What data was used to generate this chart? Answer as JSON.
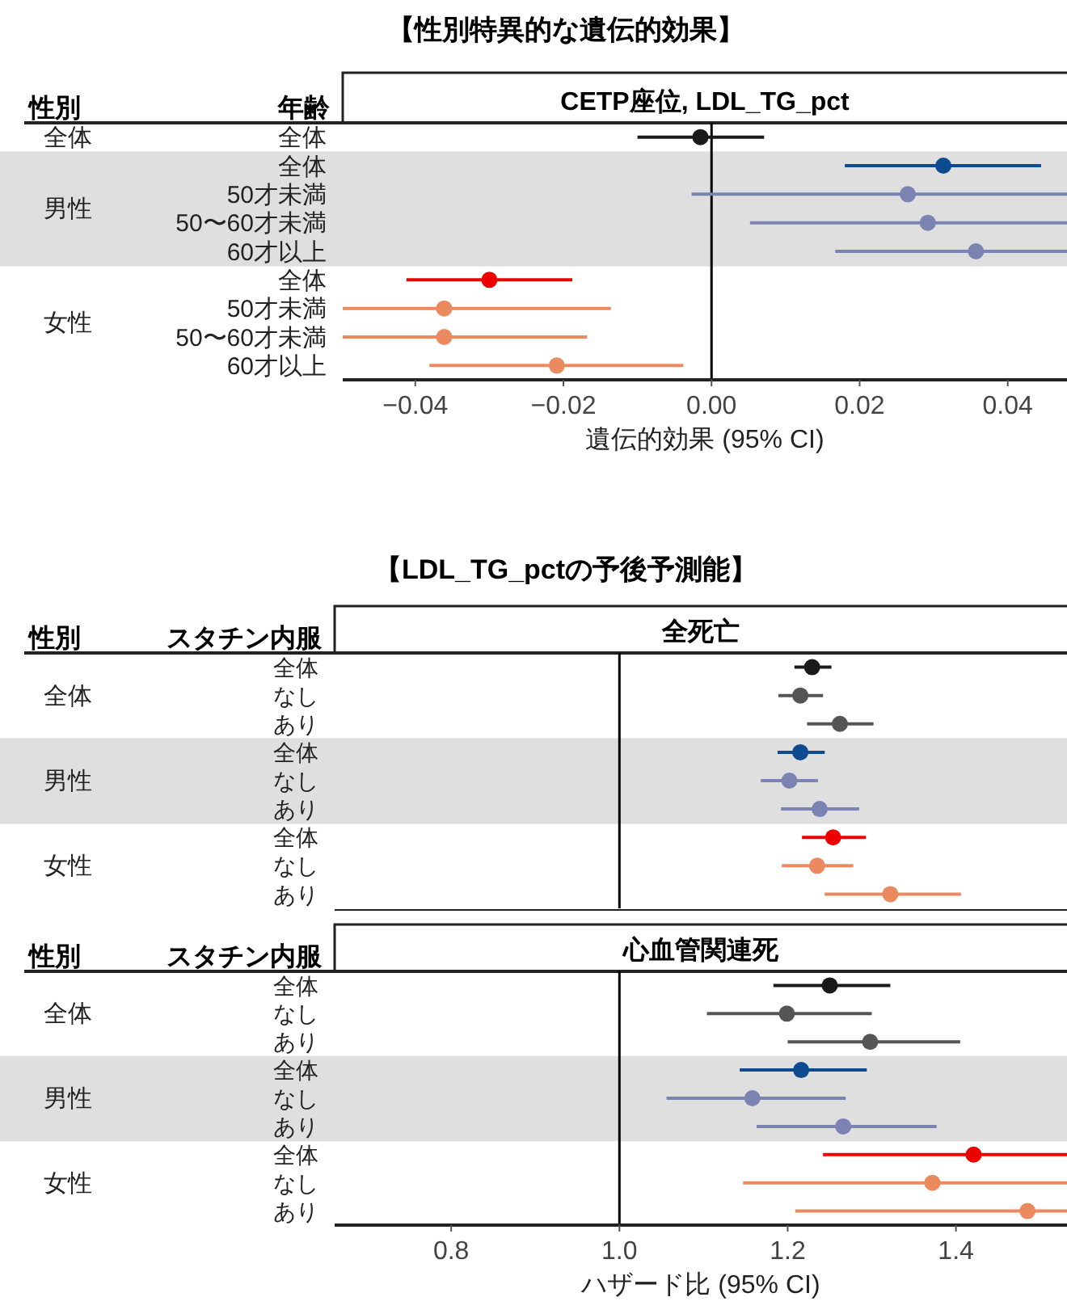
{
  "chart_data": [
    {
      "type": "scatter",
      "orientation": "horizontal",
      "title": "【性別特異的な遺伝的効果】",
      "subtitle": "CETP座位, LDL_TG_pct",
      "xlabel": "遺伝的効果 (95% CI)",
      "marker": "circle",
      "annotations": [
        "性別",
        "年齢",
        "全体",
        "男性",
        "女性"
      ],
      "categories": [
        "全体",
        "全体",
        "50才未満",
        "50〜60才未満",
        "60才以上",
        "全体",
        "50才未満",
        "50〜60才未満",
        "60才以上"
      ],
      "ref_lines": [
        {
          "axis": "x",
          "value": 0,
          "color": "#000000"
        }
      ],
      "xlim": [
        -0.0498,
        0.048
      ],
      "xticks": [
        {
          "value": -0.04,
          "label": "−0.04"
        },
        {
          "value": -0.02,
          "label": "−0.02"
        },
        {
          "value": 0,
          "label": "0.00"
        },
        {
          "value": 0.02,
          "label": "0.02"
        },
        {
          "value": 0.04,
          "label": "0.04"
        }
      ],
      "series": [
        {
          "colors": [
            "#1a1a1a",
            null,
            null,
            null,
            null,
            null,
            null,
            null,
            null
          ],
          "values": [
            -0.0015,
            null,
            null,
            null,
            null,
            null,
            null,
            null,
            null
          ],
          "errors": [
            [
              -0.01,
              0.0071
            ],
            null,
            null,
            null,
            null,
            null,
            null,
            null,
            null
          ]
        },
        {
          "colors": [
            null,
            "#0d4a8f",
            "#7b83b3",
            "#7b83b3",
            "#7b83b3",
            null,
            null,
            null,
            null
          ],
          "values": [
            null,
            0.0313,
            0.0265,
            0.0292,
            0.0357,
            null,
            null,
            null,
            null
          ],
          "errors": [
            null,
            [
              0.018,
              0.0445
            ],
            [
              -0.0027,
              0.048
            ],
            [
              0.0052,
              0.048
            ],
            [
              0.0167,
              0.048
            ],
            null,
            null,
            null,
            null
          ]
        },
        {
          "colors": [
            null,
            null,
            null,
            null,
            null,
            "#ee0000",
            "#ec8a5f",
            "#ec8a5f",
            "#ec8a5f"
          ],
          "values": [
            null,
            null,
            null,
            null,
            null,
            -0.03,
            -0.0361,
            -0.0361,
            -0.0209
          ],
          "errors": [
            null,
            null,
            null,
            null,
            null,
            [
              -0.0412,
              -0.0188
            ],
            [
              -0.0498,
              -0.0136
            ],
            [
              -0.0498,
              -0.0168
            ],
            [
              -0.0381,
              -0.0038
            ]
          ]
        }
      ]
    },
    {
      "type": "scatter",
      "orientation": "horizontal",
      "title": "【LDL_TG_pctの予後予測能】",
      "subtitle": "全死亡",
      "marker": "circle",
      "tick_labels": "y",
      "annotations": [
        "性別",
        "スタチン内服",
        "全体",
        "男性",
        "女性"
      ],
      "categories": [
        "全体",
        "なし",
        "あり",
        "全体",
        "なし",
        "あり",
        "全体",
        "なし",
        "あり"
      ],
      "ref_lines": [
        {
          "axis": "x",
          "value": 1,
          "color": "#000000"
        }
      ],
      "xlim": [
        0.6615,
        1.532
      ],
      "series": [
        {
          "colors": [
            "#1a1a1a",
            "#555555",
            "#555555",
            null,
            null,
            null,
            null,
            null,
            null
          ],
          "values": [
            1.229,
            1.215,
            1.262,
            null,
            null,
            null,
            null,
            null,
            null
          ],
          "errors": [
            [
              1.208,
              1.252
            ],
            [
              1.189,
              1.242
            ],
            [
              1.223,
              1.302
            ],
            null,
            null,
            null,
            null,
            null,
            null
          ]
        },
        {
          "colors": [
            null,
            null,
            null,
            "#0d4a8f",
            "#7b83b3",
            "#7b83b3",
            null,
            null,
            null
          ],
          "values": [
            null,
            null,
            null,
            1.215,
            1.202,
            1.238,
            null,
            null,
            null
          ],
          "errors": [
            null,
            null,
            null,
            [
              1.188,
              1.244
            ],
            [
              1.168,
              1.236
            ],
            [
              1.192,
              1.285
            ],
            null,
            null,
            null
          ]
        },
        {
          "colors": [
            null,
            null,
            null,
            null,
            null,
            null,
            "#ee0000",
            "#ec8a5f",
            "#ec8a5f"
          ],
          "values": [
            null,
            null,
            null,
            null,
            null,
            null,
            1.254,
            1.235,
            1.322
          ],
          "errors": [
            null,
            null,
            null,
            null,
            null,
            null,
            [
              1.217,
              1.293
            ],
            [
              1.193,
              1.278
            ],
            [
              1.244,
              1.406
            ]
          ]
        }
      ]
    },
    {
      "type": "scatter",
      "orientation": "horizontal",
      "subtitle": "心血管関連死",
      "xlabel": "ハザード比 (95% CI)",
      "marker": "circle",
      "annotations": [
        "性別",
        "スタチン内服",
        "全体",
        "男性",
        "女性"
      ],
      "categories": [
        "全体",
        "なし",
        "あり",
        "全体",
        "なし",
        "あり",
        "全体",
        "なし",
        "あり"
      ],
      "ref_lines": [
        {
          "axis": "x",
          "value": 1,
          "color": "#000000"
        }
      ],
      "xlim": [
        0.6615,
        1.532
      ],
      "xticks": [
        {
          "value": 0.8,
          "label": "0.8"
        },
        {
          "value": 1.0,
          "label": "1.0"
        },
        {
          "value": 1.2,
          "label": "1.2"
        },
        {
          "value": 1.4,
          "label": "1.4"
        }
      ],
      "series": [
        {
          "colors": [
            "#1a1a1a",
            "#555555",
            "#555555",
            null,
            null,
            null,
            null,
            null,
            null
          ],
          "values": [
            1.25,
            1.199,
            1.298,
            null,
            null,
            null,
            null,
            null,
            null
          ],
          "errors": [
            [
              1.183,
              1.322
            ],
            [
              1.104,
              1.3
            ],
            [
              1.2,
              1.405
            ],
            null,
            null,
            null,
            null,
            null,
            null
          ]
        },
        {
          "colors": [
            null,
            null,
            null,
            "#0d4a8f",
            "#7b83b3",
            "#7b83b3",
            null,
            null,
            null
          ],
          "values": [
            null,
            null,
            null,
            1.216,
            1.158,
            1.266,
            null,
            null,
            null
          ],
          "errors": [
            null,
            null,
            null,
            [
              1.143,
              1.294
            ],
            [
              1.056,
              1.269
            ],
            [
              1.163,
              1.377
            ],
            null,
            null,
            null
          ]
        },
        {
          "colors": [
            null,
            null,
            null,
            null,
            null,
            null,
            "#ee0000",
            "#ec8a5f",
            "#ec8a5f"
          ],
          "values": [
            null,
            null,
            null,
            null,
            null,
            null,
            1.421,
            1.372,
            1.485
          ],
          "errors": [
            null,
            null,
            null,
            null,
            null,
            null,
            [
              1.242,
              1.532
            ],
            [
              1.147,
              1.532
            ],
            [
              1.209,
              1.532
            ]
          ]
        }
      ]
    }
  ]
}
